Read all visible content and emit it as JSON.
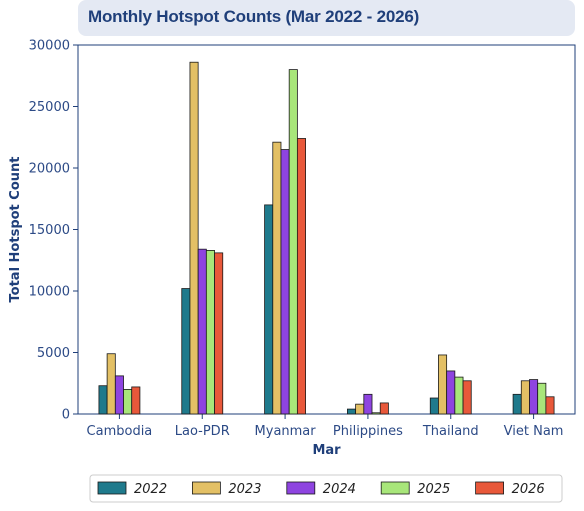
{
  "chart_data": {
    "type": "bar",
    "title": "Monthly Hotspot Counts (Mar 2022 - 2026)",
    "xlabel": "Mar",
    "ylabel": "Total Hotspot Count",
    "ylim": [
      0,
      30000
    ],
    "yticks": [
      0,
      5000,
      10000,
      15000,
      20000,
      25000,
      30000
    ],
    "categories": [
      "Cambodia",
      "Lao-PDR",
      "Myanmar",
      "Philippines",
      "Thailand",
      "Viet Nam"
    ],
    "series": [
      {
        "name": "2022",
        "color": "#1f7a8c",
        "values": [
          2300,
          10200,
          17000,
          400,
          1300,
          1600
        ]
      },
      {
        "name": "2023",
        "color": "#e3c065",
        "values": [
          4900,
          28600,
          22100,
          800,
          4800,
          2700
        ]
      },
      {
        "name": "2024",
        "color": "#8e44e0",
        "values": [
          3100,
          13400,
          21500,
          1600,
          3500,
          2800
        ]
      },
      {
        "name": "2025",
        "color": "#a8e67a",
        "values": [
          2000,
          13300,
          28000,
          100,
          3000,
          2500
        ]
      },
      {
        "name": "2026",
        "color": "#e8583a",
        "values": [
          2200,
          13100,
          22400,
          900,
          2700,
          1400
        ]
      }
    ],
    "grid": false,
    "legend_position": "bottom"
  }
}
